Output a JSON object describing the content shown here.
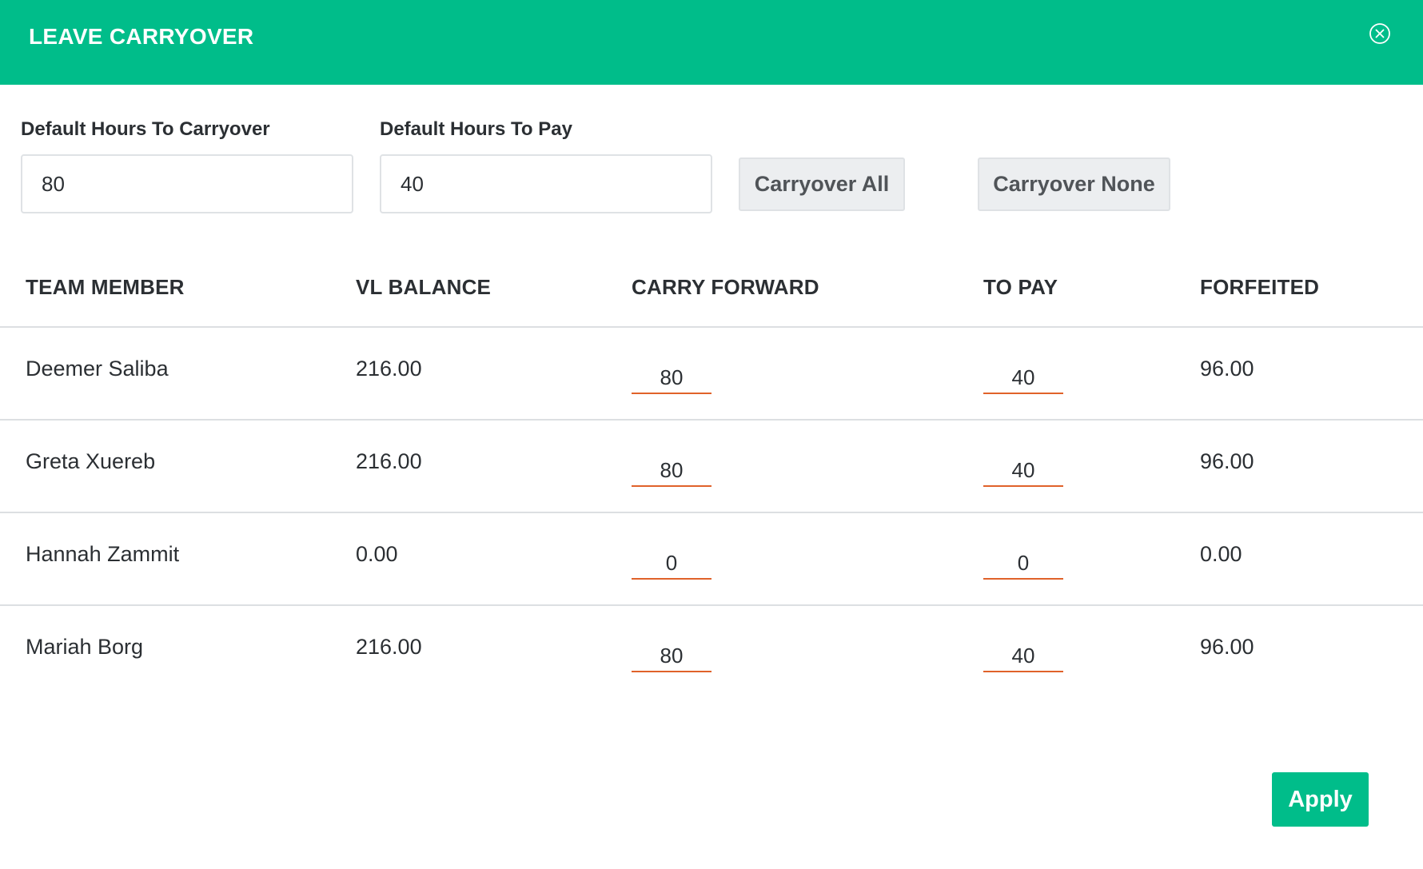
{
  "dialog": {
    "title": "LEAVE CARRYOVER",
    "close_icon": "close-circle-icon"
  },
  "defaults": {
    "carryover_label": "Default Hours To Carryover",
    "carryover_value": "80",
    "pay_label": "Default Hours To Pay",
    "pay_value": "40",
    "carryover_all_label": "Carryover All",
    "carryover_none_label": "Carryover None"
  },
  "table": {
    "headers": [
      "TEAM MEMBER",
      "VL BALANCE",
      "CARRY FORWARD",
      "TO PAY",
      "FORFEITED"
    ],
    "rows": [
      {
        "member": "Deemer Saliba",
        "vl_balance": "216.00",
        "carry_forward": "80",
        "to_pay": "40",
        "forfeited": "96.00"
      },
      {
        "member": "Greta Xuereb",
        "vl_balance": "216.00",
        "carry_forward": "80",
        "to_pay": "40",
        "forfeited": "96.00"
      },
      {
        "member": "Hannah Zammit",
        "vl_balance": "0.00",
        "carry_forward": "0",
        "to_pay": "0",
        "forfeited": "0.00"
      },
      {
        "member": "Mariah Borg",
        "vl_balance": "216.00",
        "carry_forward": "80",
        "to_pay": "40",
        "forfeited": "96.00"
      }
    ]
  },
  "footer": {
    "apply_label": "Apply"
  },
  "colors": {
    "brand": "#00bd8a",
    "input_underline": "#e0622a",
    "button_gray": "#eceef0"
  }
}
